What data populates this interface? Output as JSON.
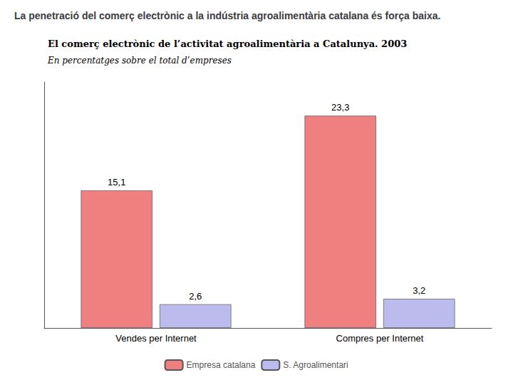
{
  "chart_data": {
    "type": "bar",
    "title": "La penetració del comerç electrònic a la indústria agroalimentària catalana és força baixa.",
    "subtitle": "El comerç electrònic de l’activitat agroalimentària a Catalunya. 2003",
    "annotations": [
      "En percentatges sobre el total d’empreses"
    ],
    "categories": [
      "Vendes per Internet",
      "Compres per Internet"
    ],
    "series": [
      {
        "name": "Empresa catalana",
        "color": "#F08080",
        "values": [
          15.1,
          23.3
        ],
        "value_labels": [
          "15,1",
          "23,3"
        ]
      },
      {
        "name": "S. Agroalimentari",
        "color": "#BBBBEE",
        "values": [
          2.6,
          3.2
        ],
        "value_labels": [
          "2,6",
          "3,2"
        ]
      }
    ],
    "ylim": [
      0,
      27
    ],
    "yticks": [],
    "tick_labels": "x",
    "grid": false,
    "legend": "lower center",
    "data_labels": true
  }
}
